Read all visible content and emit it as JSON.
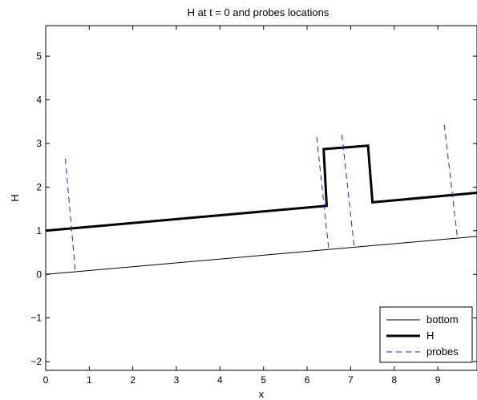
{
  "chart_data": {
    "type": "line",
    "title": "H at t = 0 and probes locations",
    "xlabel": "x",
    "ylabel": "H",
    "xlim": [
      0,
      9.9
    ],
    "ylim": [
      -2.2,
      5.7
    ],
    "x_ticks": [
      0,
      1,
      2,
      3,
      4,
      5,
      6,
      7,
      8,
      9
    ],
    "y_ticks": [
      -2,
      -1,
      0,
      1,
      2,
      3,
      4,
      5
    ],
    "x_tick_labels": [
      "0",
      "1",
      "2",
      "3",
      "4",
      "5",
      "6",
      "7",
      "8",
      "9"
    ],
    "y_tick_labels": [
      "−2",
      "−1",
      "0",
      "1",
      "2",
      "3",
      "4",
      "5"
    ],
    "grid": false,
    "legend_position": "bottom-right",
    "series": [
      {
        "name": "bottom",
        "color": "#000000",
        "style": "solid-thin",
        "x": [
          0,
          9.9
        ],
        "y": [
          0.0,
          0.87
        ]
      },
      {
        "name": "H",
        "color": "#000000",
        "style": "solid-thick",
        "x": [
          0,
          6.45,
          6.38,
          7.4,
          7.5,
          9.9
        ],
        "y": [
          1.0,
          1.57,
          2.87,
          2.95,
          1.65,
          1.87
        ]
      },
      {
        "name": "probes",
        "color": "#2222cc",
        "style": "dashed",
        "segments": [
          {
            "x": [
              0.45,
              0.68
            ],
            "y": [
              2.65,
              0.05
            ]
          },
          {
            "x": [
              6.22,
              6.5
            ],
            "y": [
              3.15,
              0.55
            ]
          },
          {
            "x": [
              6.8,
              7.08
            ],
            "y": [
              3.2,
              0.62
            ]
          },
          {
            "x": [
              9.15,
              9.45
            ],
            "y": [
              3.43,
              0.85
            ]
          }
        ]
      }
    ]
  }
}
